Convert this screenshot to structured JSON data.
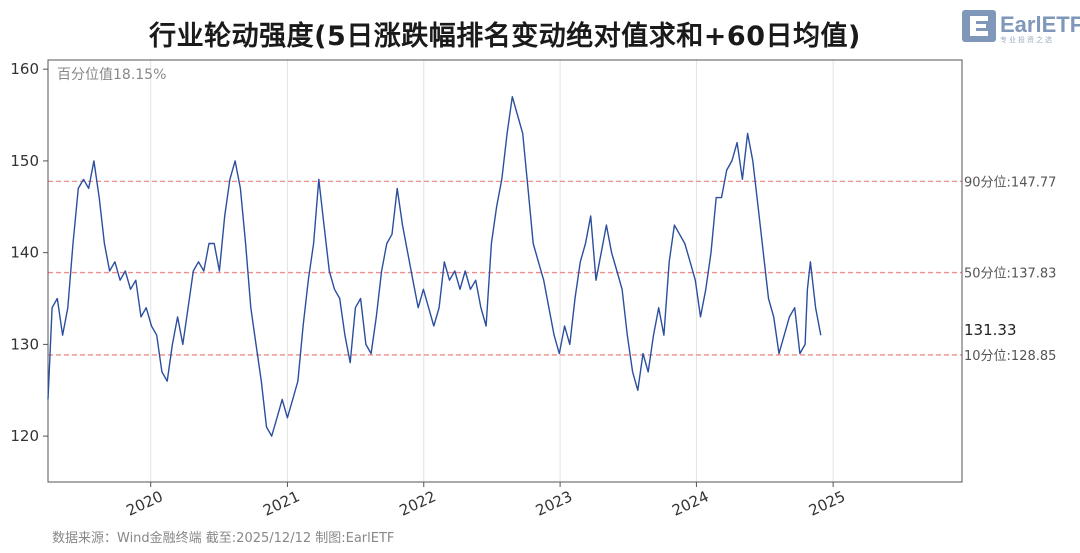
{
  "title": "行业轮动强度(5日涨跌幅排名变动绝对值求和+60日均值)",
  "logo": {
    "text": "EarlETF",
    "subtext": "专业投资之选"
  },
  "source": "数据来源：Wind金融终端 截至:2025/12/12 制图:EarlETF",
  "colors": {
    "line": "#2b4f9e",
    "ref": "#f08c8c",
    "grid": "#e3e3e3",
    "axis": "#555555"
  },
  "chart_data": {
    "type": "line",
    "title": "行业轮动强度(5日涨跌幅排名变动绝对值求和+60日均值)",
    "xlabel": "",
    "ylabel": "",
    "x_range": [
      "2019-04-01",
      "2025-12-12"
    ],
    "ylim": [
      115,
      161
    ],
    "y_ticks": [
      120,
      130,
      140,
      150,
      160
    ],
    "x_ticks": [
      "2020",
      "2021",
      "2022",
      "2023",
      "2024",
      "2025"
    ],
    "percentile_annotation": "百分位值18.15%",
    "reference_lines": [
      {
        "label": "90分位:147.77",
        "value": 147.77
      },
      {
        "label": "50分位:137.83",
        "value": 137.83
      },
      {
        "label": "10分位:128.85",
        "value": 128.85
      }
    ],
    "last_value_label": "131.33",
    "series": [
      {
        "points": [
          [
            "2019-04-01",
            124
          ],
          [
            "2019-04-12",
            134
          ],
          [
            "2019-04-26",
            135
          ],
          [
            "2019-05-10",
            131
          ],
          [
            "2019-05-24",
            134
          ],
          [
            "2019-06-07",
            141
          ],
          [
            "2019-06-21",
            147
          ],
          [
            "2019-07-05",
            148
          ],
          [
            "2019-07-19",
            147
          ],
          [
            "2019-08-02",
            150
          ],
          [
            "2019-08-16",
            146
          ],
          [
            "2019-08-30",
            141
          ],
          [
            "2019-09-13",
            138
          ],
          [
            "2019-09-27",
            139
          ],
          [
            "2019-10-11",
            137
          ],
          [
            "2019-10-25",
            138
          ],
          [
            "2019-11-08",
            136
          ],
          [
            "2019-11-22",
            137
          ],
          [
            "2019-12-06",
            133
          ],
          [
            "2019-12-20",
            134
          ],
          [
            "2020-01-03",
            132
          ],
          [
            "2020-01-17",
            131
          ],
          [
            "2020-01-31",
            127
          ],
          [
            "2020-02-14",
            126
          ],
          [
            "2020-02-28",
            130
          ],
          [
            "2020-03-13",
            133
          ],
          [
            "2020-03-27",
            130
          ],
          [
            "2020-04-10",
            134
          ],
          [
            "2020-04-24",
            138
          ],
          [
            "2020-05-08",
            139
          ],
          [
            "2020-05-22",
            138
          ],
          [
            "2020-06-05",
            141
          ],
          [
            "2020-06-19",
            141
          ],
          [
            "2020-07-03",
            138
          ],
          [
            "2020-07-17",
            144
          ],
          [
            "2020-07-31",
            148
          ],
          [
            "2020-08-14",
            150
          ],
          [
            "2020-08-28",
            147
          ],
          [
            "2020-09-11",
            141
          ],
          [
            "2020-09-25",
            134
          ],
          [
            "2020-10-09",
            130
          ],
          [
            "2020-10-23",
            126
          ],
          [
            "2020-11-06",
            121
          ],
          [
            "2020-11-20",
            120
          ],
          [
            "2020-12-04",
            122
          ],
          [
            "2020-12-18",
            124
          ],
          [
            "2021-01-01",
            122
          ],
          [
            "2021-01-15",
            124
          ],
          [
            "2021-01-29",
            126
          ],
          [
            "2021-02-12",
            132
          ],
          [
            "2021-02-26",
            137
          ],
          [
            "2021-03-12",
            141
          ],
          [
            "2021-03-26",
            148
          ],
          [
            "2021-04-09",
            143
          ],
          [
            "2021-04-23",
            138
          ],
          [
            "2021-05-07",
            136
          ],
          [
            "2021-05-21",
            135
          ],
          [
            "2021-06-04",
            131
          ],
          [
            "2021-06-18",
            128
          ],
          [
            "2021-07-02",
            134
          ],
          [
            "2021-07-16",
            135
          ],
          [
            "2021-07-30",
            130
          ],
          [
            "2021-08-13",
            129
          ],
          [
            "2021-08-27",
            133
          ],
          [
            "2021-09-10",
            138
          ],
          [
            "2021-09-24",
            141
          ],
          [
            "2021-10-08",
            142
          ],
          [
            "2021-10-22",
            147
          ],
          [
            "2021-11-05",
            143
          ],
          [
            "2021-11-19",
            140
          ],
          [
            "2021-12-03",
            137
          ],
          [
            "2021-12-17",
            134
          ],
          [
            "2021-12-31",
            136
          ],
          [
            "2022-01-14",
            134
          ],
          [
            "2022-01-28",
            132
          ],
          [
            "2022-02-11",
            134
          ],
          [
            "2022-02-25",
            139
          ],
          [
            "2022-03-11",
            137
          ],
          [
            "2022-03-25",
            138
          ],
          [
            "2022-04-08",
            136
          ],
          [
            "2022-04-22",
            138
          ],
          [
            "2022-05-06",
            136
          ],
          [
            "2022-05-20",
            137
          ],
          [
            "2022-06-03",
            134
          ],
          [
            "2022-06-17",
            132
          ],
          [
            "2022-07-01",
            141
          ],
          [
            "2022-07-15",
            145
          ],
          [
            "2022-07-29",
            148
          ],
          [
            "2022-08-12",
            153
          ],
          [
            "2022-08-26",
            157
          ],
          [
            "2022-09-09",
            155
          ],
          [
            "2022-09-23",
            153
          ],
          [
            "2022-10-07",
            147
          ],
          [
            "2022-10-21",
            141
          ],
          [
            "2022-11-04",
            139
          ],
          [
            "2022-11-18",
            137
          ],
          [
            "2022-12-02",
            134
          ],
          [
            "2022-12-16",
            131
          ],
          [
            "2022-12-30",
            129
          ],
          [
            "2023-01-13",
            132
          ],
          [
            "2023-01-27",
            130
          ],
          [
            "2023-02-10",
            135
          ],
          [
            "2023-02-24",
            139
          ],
          [
            "2023-03-10",
            141
          ],
          [
            "2023-03-24",
            144
          ],
          [
            "2023-04-07",
            137
          ],
          [
            "2023-04-21",
            140
          ],
          [
            "2023-05-05",
            143
          ],
          [
            "2023-05-19",
            140
          ],
          [
            "2023-06-02",
            138
          ],
          [
            "2023-06-16",
            136
          ],
          [
            "2023-06-30",
            131
          ],
          [
            "2023-07-14",
            127
          ],
          [
            "2023-07-28",
            125
          ],
          [
            "2023-08-11",
            129
          ],
          [
            "2023-08-25",
            127
          ],
          [
            "2023-09-08",
            131
          ],
          [
            "2023-09-22",
            134
          ],
          [
            "2023-10-06",
            131
          ],
          [
            "2023-10-20",
            139
          ],
          [
            "2023-11-03",
            143
          ],
          [
            "2023-11-17",
            142
          ],
          [
            "2023-12-01",
            141
          ],
          [
            "2023-12-15",
            139
          ],
          [
            "2023-12-29",
            137
          ],
          [
            "2024-01-12",
            133
          ],
          [
            "2024-01-26",
            136
          ],
          [
            "2024-02-09",
            140
          ],
          [
            "2024-02-23",
            146
          ],
          [
            "2024-03-08",
            146
          ],
          [
            "2024-03-22",
            149
          ],
          [
            "2024-04-05",
            150
          ],
          [
            "2024-04-19",
            152
          ],
          [
            "2024-05-03",
            148
          ],
          [
            "2024-05-17",
            153
          ],
          [
            "2024-05-31",
            150
          ],
          [
            "2024-06-14",
            145
          ],
          [
            "2024-06-28",
            140
          ],
          [
            "2024-07-12",
            135
          ],
          [
            "2024-07-26",
            133
          ],
          [
            "2024-08-09",
            129
          ],
          [
            "2024-08-23",
            131
          ],
          [
            "2024-09-06",
            133
          ],
          [
            "2024-09-20",
            134
          ],
          [
            "2024-10-04",
            129
          ],
          [
            "2024-10-18",
            130
          ],
          [
            "2024-10-24",
            136
          ],
          [
            "2024-11-01",
            139
          ],
          [
            "2024-11-15",
            134
          ],
          [
            "2024-11-29",
            131
          ]
        ]
      }
    ]
  }
}
